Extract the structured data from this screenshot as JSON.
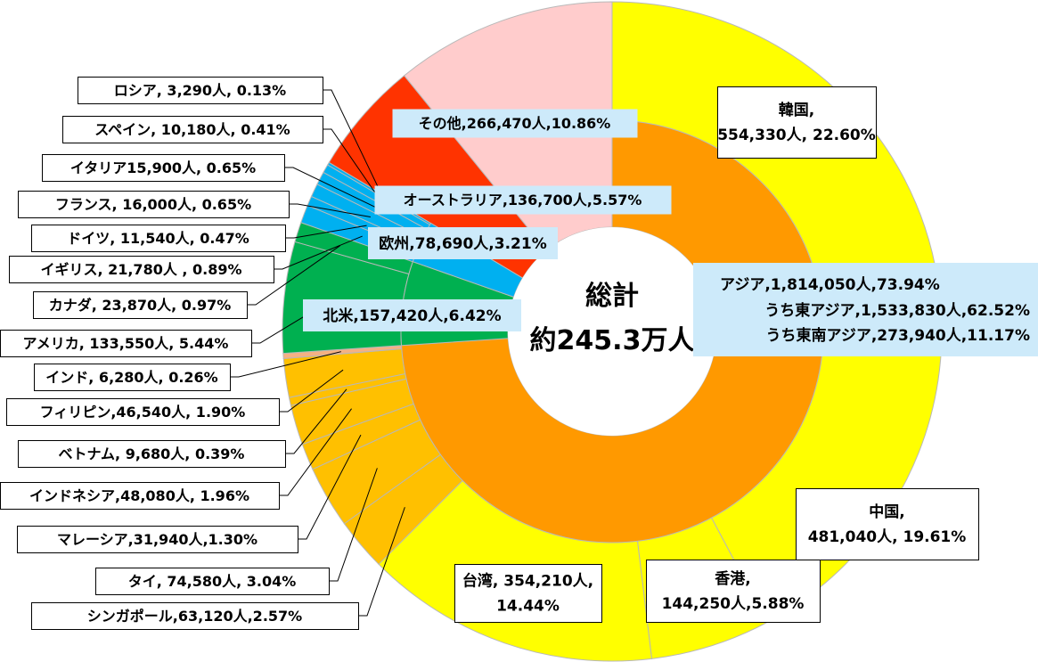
{
  "chart_data": {
    "type": "sunburst",
    "center_label": "総計\n約245.3万人",
    "outer": {
      "labels": [
        "韓国,\n554,330人, 22.60%",
        "中国,\n481,040人, 19.61%",
        "香港,\n144,250人,5.88%",
        "台湾, 354,210人,\n14.44%",
        "シンガポール,63,120人,2.57%",
        "タイ, 74,580人, 3.04%",
        "マレーシア,31,940人,1.30%",
        "インドネシア,48,080人, 1.96%",
        "ベトナム, 9,680人, 0.39%",
        "フィリピン,46,540人, 1.90%",
        "インド, 6,280人, 0.26%",
        "アメリカ, 133,550人, 5.44%",
        "カナダ, 23,870人, 0.97%",
        "イギリス, 21,780人 , 0.89%",
        "ドイツ, 11,540人, 0.47%",
        "フランス, 16,000人, 0.65%",
        "イタリア15,900人, 0.65%",
        "スペイン, 10,180人, 0.41%",
        "ロシア, 3,290人, 0.13%",
        "オーストラリア,136,700人,5.57%",
        "その他,266,470人,10.86%"
      ],
      "values": [
        554330,
        481040,
        144250,
        354210,
        63120,
        74580,
        31940,
        48080,
        9680,
        46540,
        6280,
        133550,
        23870,
        21780,
        11540,
        16000,
        15900,
        10180,
        3290,
        136700,
        266470
      ],
      "colors": [
        "#ffff00",
        "#ffff00",
        "#ffff00",
        "#ffff00",
        "#ffc000",
        "#ffc000",
        "#ffc000",
        "#ffc000",
        "#ffc000",
        "#ffc000",
        "#f4b183",
        "#00b050",
        "#00b050",
        "#00b0f0",
        "#00b0f0",
        "#00b0f0",
        "#00b0f0",
        "#00b0f0",
        "#00b0f0",
        "#ff3300",
        "#ffcccc"
      ]
    },
    "inner": {
      "labels": [
        "アジア,1,814,050人,73.94%",
        "北米,157,420人,6.42%",
        "欧州,78,690人,3.21%"
      ],
      "values": [
        1814050,
        157420,
        78690
      ],
      "colors": [
        "#ff9900",
        "#00b050",
        "#00b0f0"
      ]
    },
    "notes": [
      "うち東アジア,1,533,830人,62.52%",
      "うち東南アジア,273,940人,11.17%"
    ]
  }
}
